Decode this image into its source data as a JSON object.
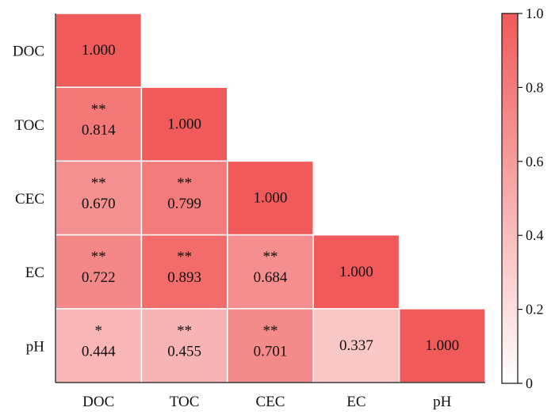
{
  "chart_data": {
    "type": "heatmap",
    "variables": [
      "DOC",
      "TOC",
      "CEC",
      "EC",
      "pH"
    ],
    "x_labels": [
      "DOC",
      "TOC",
      "CEC",
      "EC",
      "pH"
    ],
    "y_labels": [
      "DOC",
      "TOC",
      "CEC",
      "EC",
      "pH"
    ],
    "matrix": [
      [
        1.0,
        null,
        null,
        null,
        null
      ],
      [
        0.814,
        1.0,
        null,
        null,
        null
      ],
      [
        0.67,
        0.799,
        1.0,
        null,
        null
      ],
      [
        0.722,
        0.893,
        0.684,
        1.0,
        null
      ],
      [
        0.444,
        0.455,
        0.701,
        0.337,
        1.0
      ]
    ],
    "significance": [
      [
        "",
        "",
        "",
        "",
        ""
      ],
      [
        "**",
        "",
        "",
        "",
        ""
      ],
      [
        "**",
        "**",
        "",
        "",
        ""
      ],
      [
        "**",
        "**",
        "**",
        "",
        ""
      ],
      [
        "*",
        "**",
        "**",
        "",
        ""
      ]
    ],
    "value_labels": [
      [
        "1.000",
        "",
        "",
        "",
        ""
      ],
      [
        "0.814",
        "1.000",
        "",
        "",
        ""
      ],
      [
        "0.670",
        "0.799",
        "1.000",
        "",
        ""
      ],
      [
        "0.722",
        "0.893",
        "0.684",
        "1.000",
        ""
      ],
      [
        "0.444",
        "0.455",
        "0.701",
        "0.337",
        "1.000"
      ]
    ],
    "layout": "lower-triangle",
    "colorbar": {
      "range": [
        0,
        1.0
      ],
      "ticks": [
        0,
        0.2,
        0.4,
        0.6,
        0.8,
        1.0
      ],
      "tick_labels": [
        "0",
        "0.2",
        "0.4",
        "0.6",
        "0.8",
        "1.0"
      ],
      "color_low": "#ffffff",
      "color_high": "#f05a5a"
    },
    "grid": false,
    "legend": "right"
  }
}
